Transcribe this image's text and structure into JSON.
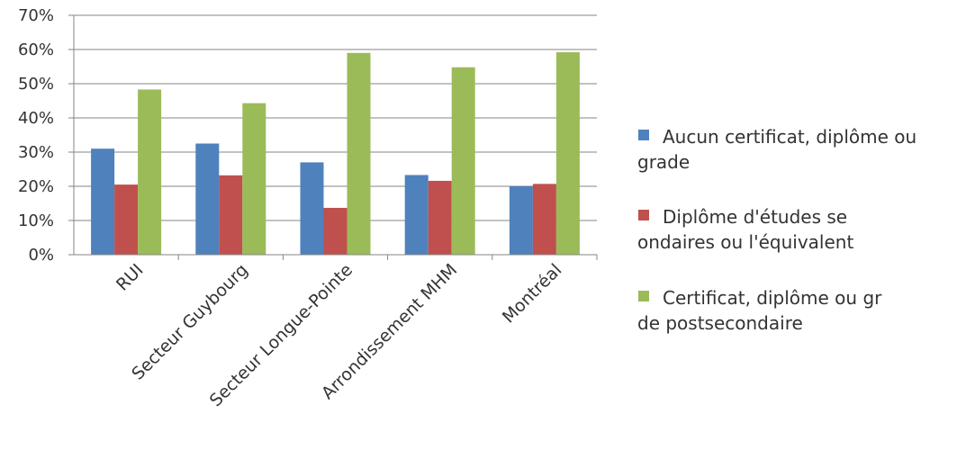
{
  "chart_data": {
    "type": "bar",
    "categories": [
      "RUI",
      "Secteur Guybourg",
      "Secteur Longue-Pointe",
      "Arrondissement MHM",
      "Montréal"
    ],
    "series": [
      {
        "name": "Aucun certificat, diplôme ou grade",
        "color": "#4f81bd",
        "values": [
          31,
          32.5,
          27,
          23.3,
          20
        ]
      },
      {
        "name": "Diplôme d'études secondaires ou l'équivalent",
        "color": "#c0504d",
        "values": [
          20.5,
          23.2,
          13.7,
          21.6,
          20.7
        ]
      },
      {
        "name": "Certificat, diplôme ou grade postsecondaire",
        "color": "#9bbb59",
        "values": [
          48.3,
          44.3,
          59,
          54.8,
          59.2
        ]
      }
    ],
    "y_ticks": [
      "0%",
      "10%",
      "20%",
      "30%",
      "40%",
      "50%",
      "60%",
      "70%"
    ],
    "ylim": [
      0,
      70
    ],
    "grid": true,
    "legend_position": "right",
    "title": "",
    "xlabel": "",
    "ylabel": ""
  }
}
